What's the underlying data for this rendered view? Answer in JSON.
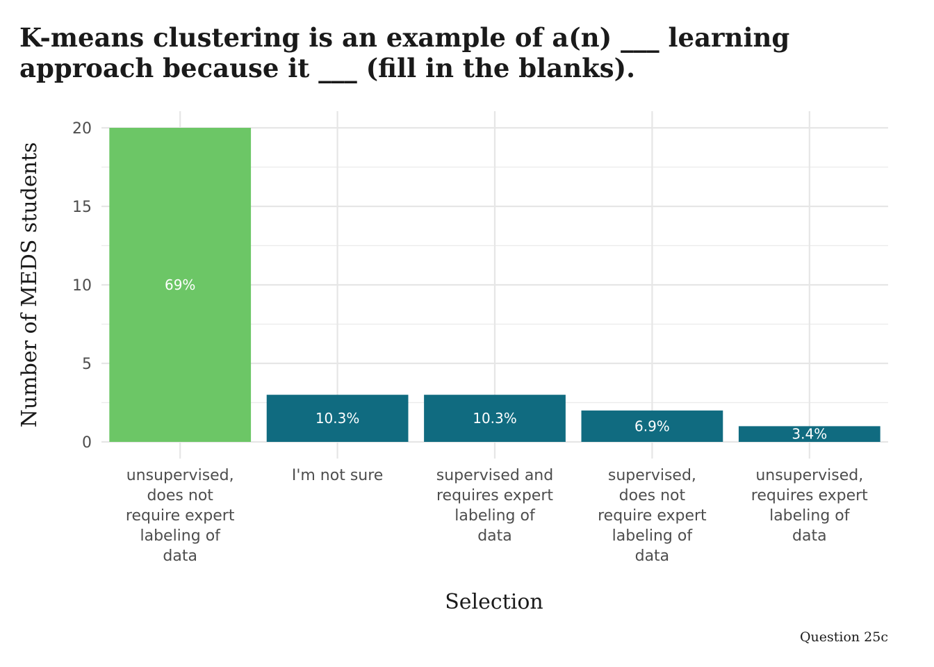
{
  "title": "K-means clustering is an example of a(n) ___ learning approach because it ___ (fill in the blanks).",
  "caption": "Question 25c",
  "chart_data": {
    "type": "bar",
    "categories": [
      "unsupervised, does not require expert labeling of data",
      "I'm not sure",
      "supervised and requires expert labeling of data",
      "supervised, does not require expert labeling of data",
      "unsupervised, requires expert labeling of data"
    ],
    "category_label_lines": [
      [
        "unsupervised,",
        "does not",
        "require expert",
        "labeling of",
        "data"
      ],
      [
        "I'm not sure"
      ],
      [
        "supervised and",
        "requires expert",
        "labeling of",
        "data"
      ],
      [
        "supervised,",
        "does not",
        "require expert",
        "labeling of",
        "data"
      ],
      [
        "unsupervised,",
        "requires expert",
        "labeling of",
        "data"
      ]
    ],
    "values": [
      20,
      3,
      3,
      2,
      1
    ],
    "data_labels": [
      "69%",
      "10.3%",
      "10.3%",
      "6.9%",
      "3.4%"
    ],
    "colors": [
      "#6cc666",
      "#106b80",
      "#106b80",
      "#106b80",
      "#106b80"
    ],
    "xlabel": "Selection",
    "ylabel": "Number of MEDS students",
    "ylim": [
      0,
      20
    ],
    "yticks": [
      0,
      5,
      10,
      15,
      20
    ],
    "grid": true,
    "legend": "none"
  }
}
